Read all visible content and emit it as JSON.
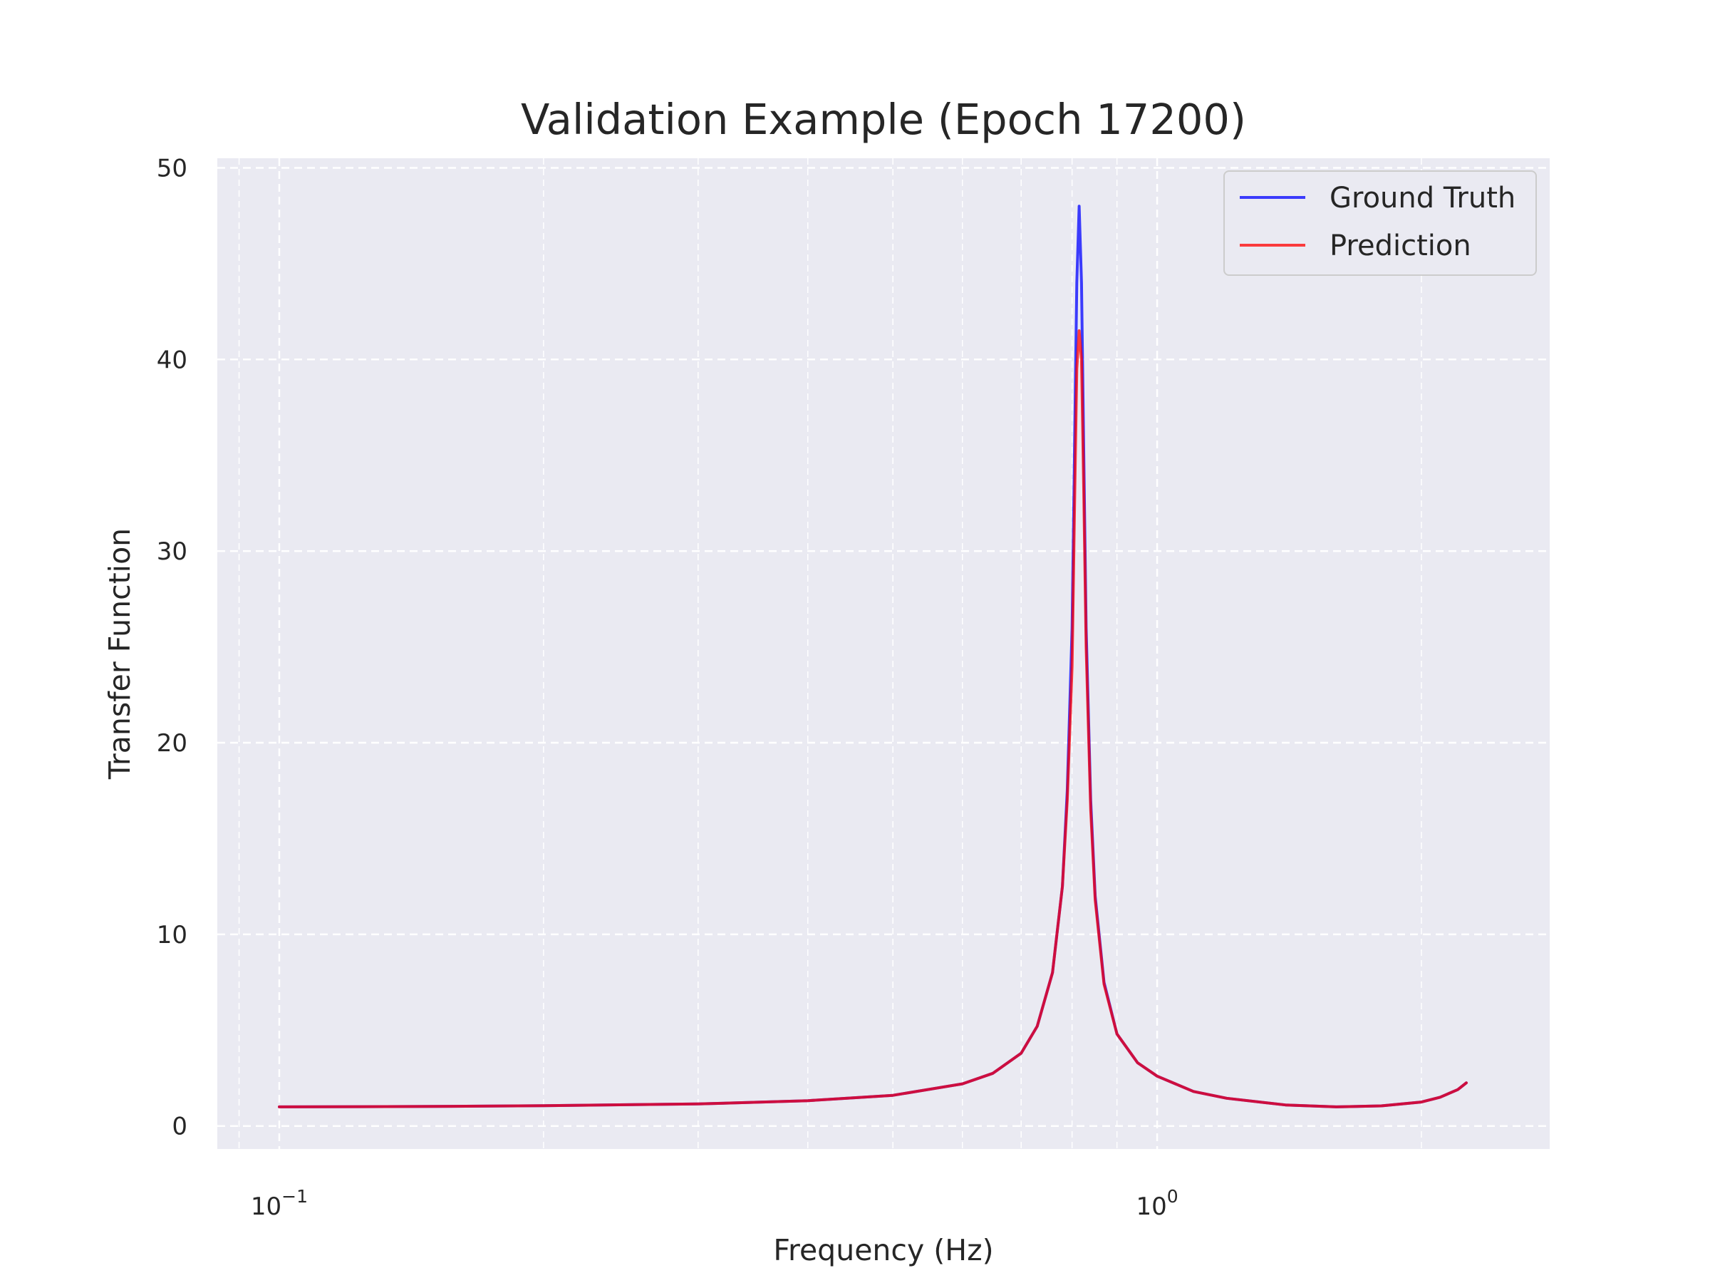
{
  "chart_data": {
    "type": "line",
    "title": "Validation Example (Epoch 17200)",
    "xlabel": "Frequency (Hz)",
    "ylabel": "Transfer Function",
    "x_scale": "log",
    "xlim": [
      0.085,
      2.8
    ],
    "ylim": [
      -1.2,
      50.5
    ],
    "y_ticks": [
      0,
      10,
      20,
      30,
      40,
      50
    ],
    "x_major_ticks": [
      {
        "value": 0.1,
        "base": "10",
        "exp": "−1"
      },
      {
        "value": 1.0,
        "base": "10",
        "exp": "0"
      }
    ],
    "x_minor_ticks": [
      0.09,
      0.2,
      0.3,
      0.4,
      0.5,
      0.6,
      0.7,
      0.8,
      0.9,
      2.0
    ],
    "grid": true,
    "grid_color": "#ffffff",
    "plot_background": "#eaeaf2",
    "legend_position": "top-right",
    "series": [
      {
        "name": "Ground Truth",
        "color": "#0000ff",
        "x": [
          0.1,
          0.15,
          0.2,
          0.3,
          0.4,
          0.5,
          0.6,
          0.65,
          0.7,
          0.73,
          0.76,
          0.78,
          0.79,
          0.8,
          0.805,
          0.81,
          0.815,
          0.82,
          0.825,
          0.83,
          0.84,
          0.85,
          0.87,
          0.9,
          0.95,
          1.0,
          1.1,
          1.2,
          1.4,
          1.6,
          1.8,
          2.0,
          2.1,
          2.2,
          2.25
        ],
        "y": [
          1.0,
          1.02,
          1.06,
          1.15,
          1.32,
          1.6,
          2.2,
          2.75,
          3.8,
          5.2,
          8.0,
          12.5,
          17.5,
          26.0,
          35.0,
          44.0,
          48.0,
          44.0,
          35.0,
          26.0,
          17.0,
          12.0,
          7.5,
          4.8,
          3.3,
          2.6,
          1.8,
          1.45,
          1.1,
          1.0,
          1.05,
          1.25,
          1.5,
          1.9,
          2.25
        ]
      },
      {
        "name": "Prediction",
        "color": "#ff0000",
        "x": [
          0.1,
          0.15,
          0.2,
          0.3,
          0.4,
          0.5,
          0.6,
          0.65,
          0.7,
          0.73,
          0.76,
          0.78,
          0.79,
          0.8,
          0.805,
          0.81,
          0.815,
          0.82,
          0.825,
          0.83,
          0.84,
          0.85,
          0.87,
          0.9,
          0.95,
          1.0,
          1.1,
          1.2,
          1.4,
          1.6,
          1.8,
          2.0,
          2.1,
          2.2,
          2.25
        ],
        "y": [
          1.0,
          1.02,
          1.06,
          1.15,
          1.32,
          1.6,
          2.2,
          2.75,
          3.8,
          5.2,
          8.0,
          12.5,
          17.0,
          24.0,
          32.0,
          39.5,
          41.5,
          40.0,
          33.0,
          25.0,
          16.5,
          11.8,
          7.4,
          4.8,
          3.3,
          2.6,
          1.8,
          1.45,
          1.1,
          1.0,
          1.05,
          1.25,
          1.5,
          1.9,
          2.25
        ]
      }
    ]
  }
}
